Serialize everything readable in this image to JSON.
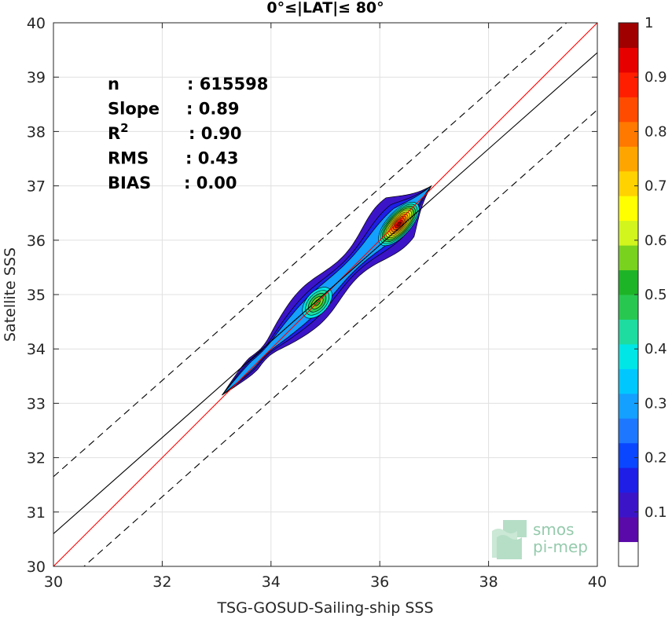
{
  "chart_data": {
    "type": "heatmap",
    "subtype": "density scatter comparison (filled contours)",
    "title": "0°≤|LAT|≤ 80°",
    "xlabel": "TSG-GOSUD-Sailing-ship SSS",
    "ylabel": "Satellite SSS",
    "xlim": [
      30,
      40
    ],
    "ylim": [
      30,
      40
    ],
    "xticks": [
      "30",
      "32",
      "34",
      "36",
      "38",
      "40"
    ],
    "yticks": [
      "30",
      "31",
      "32",
      "33",
      "34",
      "35",
      "36",
      "37",
      "38",
      "39",
      "40"
    ],
    "grid": true,
    "stats": [
      {
        "label": "n",
        "value": ": 615598"
      },
      {
        "label": "Slope",
        "value": ": 0.89"
      },
      {
        "label": "R",
        "sup": "2",
        "value": ": 0.90"
      },
      {
        "label": "RMS",
        "value": ": 0.43"
      },
      {
        "label": "BIAS",
        "value": ": 0.00"
      }
    ],
    "lines": [
      {
        "name": "1:1 line",
        "color": "#ff0000",
        "style": "solid",
        "points": [
          [
            30,
            30
          ],
          [
            40,
            40
          ]
        ]
      },
      {
        "name": "regression",
        "color": "#000000",
        "style": "solid",
        "points": [
          [
            30,
            30.6
          ],
          [
            40,
            39.45
          ]
        ]
      },
      {
        "name": "upper bound",
        "color": "#000000",
        "style": "dashed",
        "points": [
          [
            30,
            31.65
          ],
          [
            40,
            40.5
          ]
        ]
      },
      {
        "name": "lower bound",
        "color": "#000000",
        "style": "dashed",
        "points": [
          [
            30,
            29.5
          ],
          [
            40,
            38.4
          ]
        ]
      }
    ],
    "density_peaks": [
      {
        "x": 36.35,
        "y": 36.3,
        "normalized_density": 0.9
      },
      {
        "x": 34.85,
        "y": 34.85,
        "normalized_density": 0.55
      }
    ],
    "colorbar": {
      "range": [
        0,
        1
      ],
      "ticks": [
        "0.1",
        "0.2",
        "0.3",
        "0.4",
        "0.5",
        "0.6",
        "0.7",
        "0.8",
        "0.9",
        "1"
      ],
      "colors": [
        "#ffffff",
        "#5a0aa8",
        "#3c14c8",
        "#1e1ee6",
        "#0a46ff",
        "#1e78ff",
        "#14a0ff",
        "#00c8ff",
        "#00e6e6",
        "#1edca0",
        "#28c850",
        "#1eb428",
        "#78d21e",
        "#d2f51e",
        "#ffff00",
        "#ffd200",
        "#ffa500",
        "#ff7800",
        "#ff4b00",
        "#ff1e00",
        "#e60000",
        "#a00000"
      ]
    },
    "watermark": {
      "line1": "smos",
      "line2": "pi-mep"
    }
  }
}
